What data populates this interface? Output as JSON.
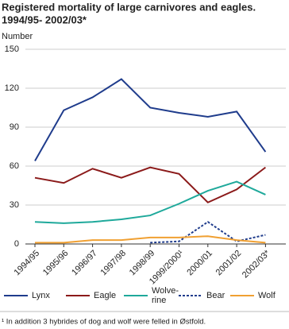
{
  "chart_data": {
    "type": "line",
    "title": [
      "Registered mortality of large carnivores and eagles.",
      "1994/95- 2002/03*"
    ],
    "y_label": "Number",
    "categories": [
      "1994/95",
      "1995/96",
      "1996/97",
      "1997/98",
      "1998/99",
      "1999/2000¹",
      "2000/01",
      "2001/02",
      "2002/03*"
    ],
    "series": [
      {
        "name": "Lynx",
        "color": "#1f3c8c",
        "values": [
          64,
          103,
          113,
          127,
          105,
          101,
          98,
          102,
          71
        ]
      },
      {
        "name": "Eagle",
        "color": "#8b1a1a",
        "values": [
          51,
          47,
          58,
          51,
          59,
          54,
          32,
          42,
          59
        ]
      },
      {
        "name": "Wolve-\nrine",
        "color": "#1fa99b",
        "values": [
          17,
          16,
          17,
          19,
          22,
          31,
          41,
          48,
          38
        ]
      },
      {
        "name": "Bear",
        "color": "#1f3c8c",
        "dashed": true,
        "values": [
          null,
          null,
          null,
          null,
          1,
          2,
          17,
          2,
          7
        ]
      },
      {
        "name": "Wolf",
        "color": "#f0a032",
        "values": [
          1,
          1,
          3,
          3,
          5,
          5,
          6,
          3,
          1
        ]
      }
    ],
    "ylim": [
      0,
      150
    ],
    "yticks": [
      0,
      30,
      60,
      90,
      120,
      150
    ],
    "grid": true,
    "footnote": "¹ In addition 3 hybrides of dog and wolf were felled in Østfold."
  }
}
